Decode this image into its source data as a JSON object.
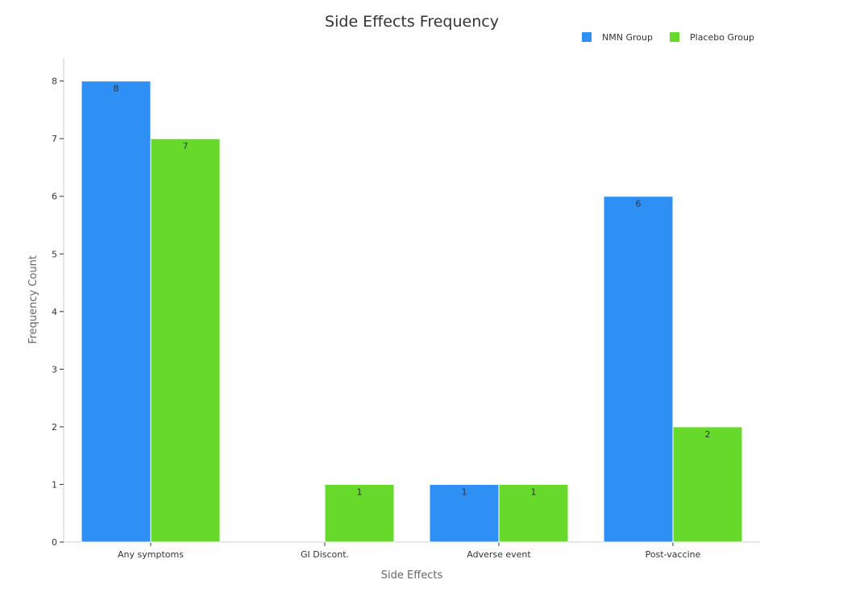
{
  "chart_data": {
    "type": "bar",
    "title": "Side Effects Frequency",
    "xlabel": "Side Effects",
    "ylabel": "Frequency Count",
    "categories": [
      "Any symptoms",
      "GI Discont.",
      "Adverse event",
      "Post-vaccine"
    ],
    "series": [
      {
        "name": "NMN Group",
        "color": "#2e8ff5",
        "values": [
          8,
          0,
          1,
          6
        ]
      },
      {
        "name": "Placebo Group",
        "color": "#66d92a",
        "values": [
          7,
          1,
          1,
          2
        ]
      }
    ],
    "ylim": [
      0,
      8.4
    ],
    "yticks": [
      0,
      1,
      2,
      3,
      4,
      5,
      6,
      7,
      8
    ],
    "grid": false,
    "legend_position": "top-right"
  }
}
